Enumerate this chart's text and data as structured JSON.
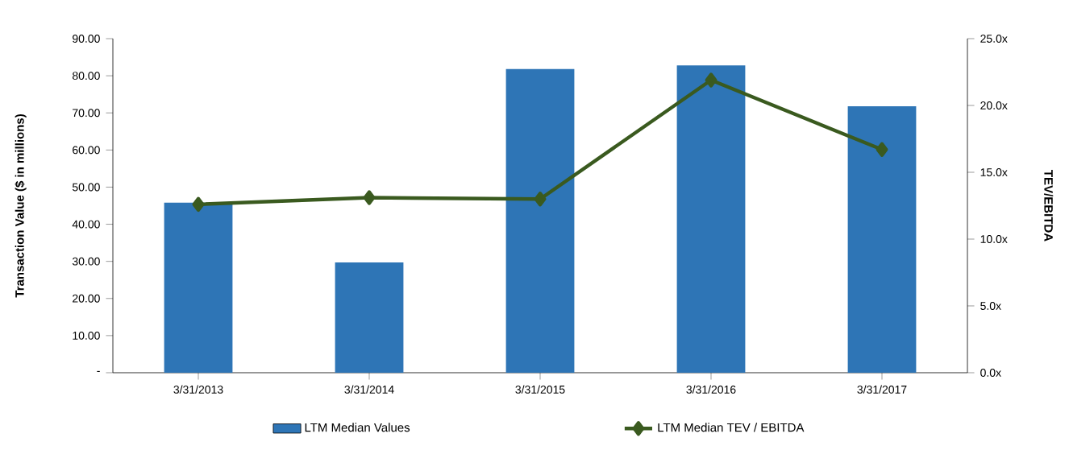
{
  "chart_data": {
    "type": "bar",
    "categories": [
      "3/31/2013",
      "3/31/2014",
      "3/31/2015",
      "3/31/2016",
      "3/31/2017"
    ],
    "series": [
      {
        "name": "LTM Median Values",
        "color": "#2e75b6",
        "values": [
          45.8,
          29.7,
          81.8,
          82.8,
          71.8
        ]
      },
      {
        "name": "LTM Median TEV / EBITDA",
        "type": "line",
        "axis": "y2",
        "marker": "diamond",
        "color": "#3a5a1f",
        "values": [
          12.6,
          13.1,
          13.0,
          21.9,
          16.7
        ]
      }
    ],
    "ylabel": "Transaction Value ($ in millions)",
    "y2label": "TEV/EBITDA",
    "ylim": [
      0,
      90
    ],
    "yticks": [
      {
        "value": 0,
        "label": "-"
      },
      {
        "value": 10,
        "label": "10.00"
      },
      {
        "value": 20,
        "label": "20.00"
      },
      {
        "value": 30,
        "label": "30.00"
      },
      {
        "value": 40,
        "label": "40.00"
      },
      {
        "value": 50,
        "label": "50.00"
      },
      {
        "value": 60,
        "label": "60.00"
      },
      {
        "value": 70,
        "label": "70.00"
      },
      {
        "value": 80,
        "label": "80.00"
      },
      {
        "value": 90,
        "label": "90.00"
      }
    ],
    "y2lim": [
      0,
      25
    ],
    "y2ticks": [
      {
        "value": 0,
        "label": "0.0x"
      },
      {
        "value": 5,
        "label": "5.0x"
      },
      {
        "value": 10,
        "label": "10.0x"
      },
      {
        "value": 15,
        "label": "15.0x"
      },
      {
        "value": 20,
        "label": "20.0x"
      },
      {
        "value": 25,
        "label": "25.0x"
      }
    ],
    "legend": "bottom"
  }
}
